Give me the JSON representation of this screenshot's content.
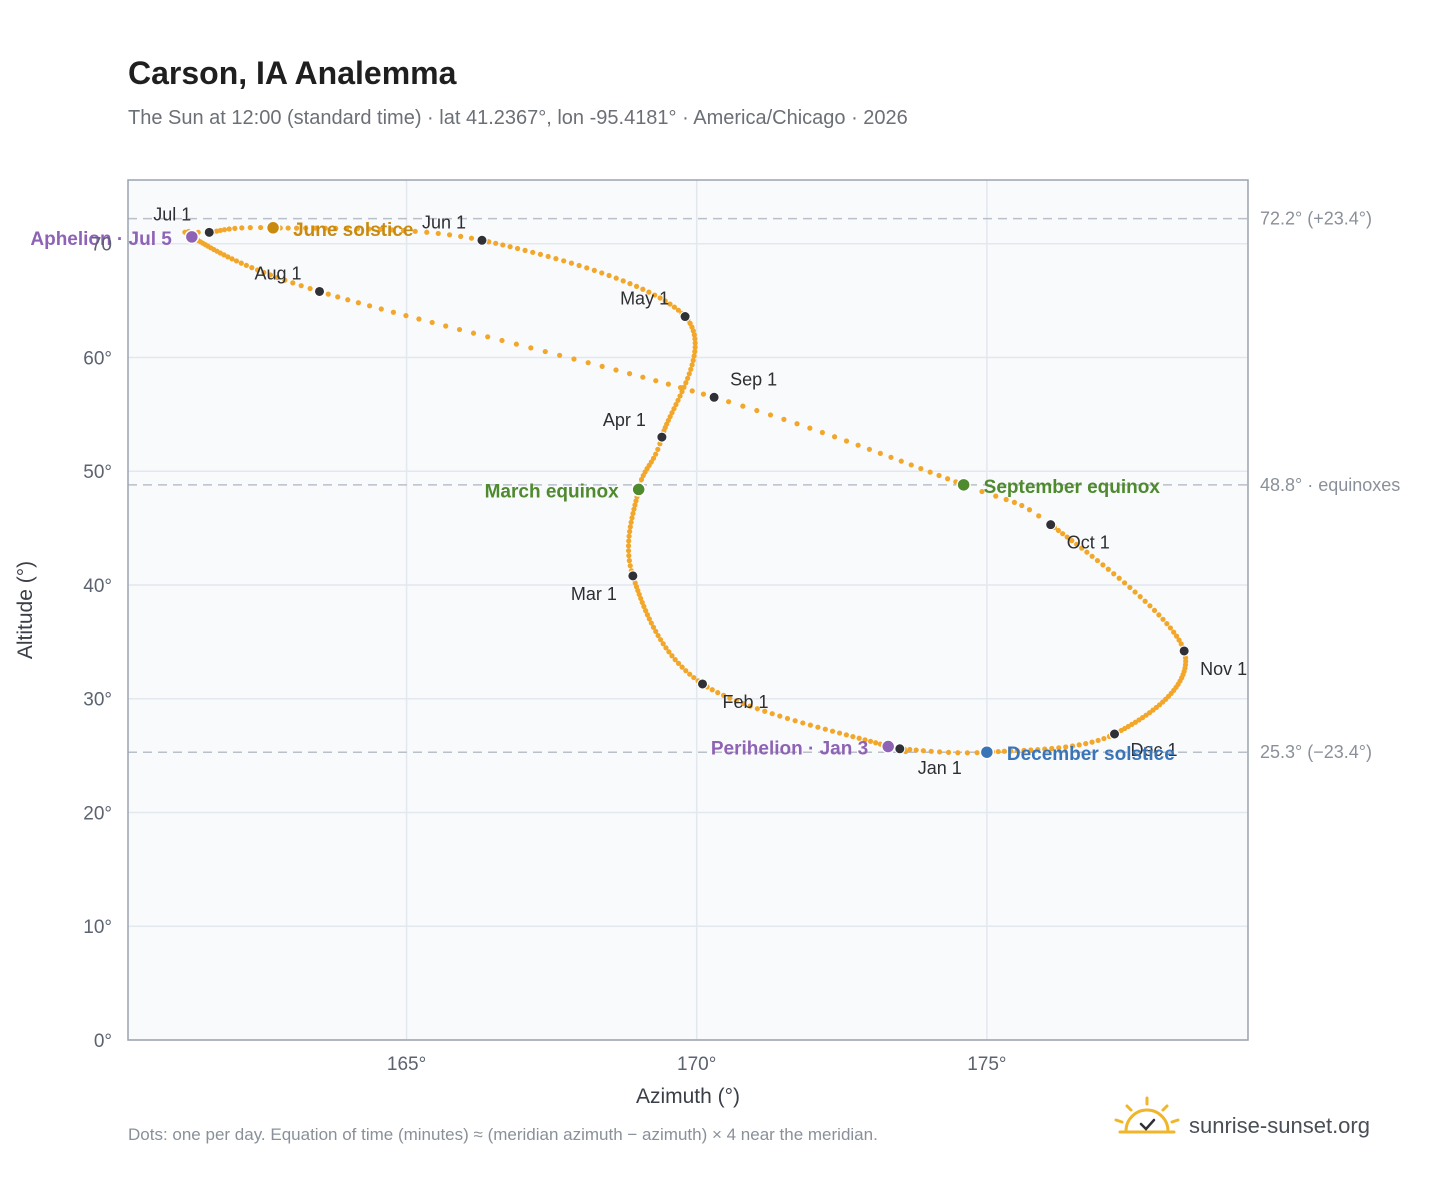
{
  "chart_data": {
    "type": "scatter",
    "title": "Carson, IA Analemma",
    "subtitle": "The Sun at 12:00 (standard time) · lat 41.2367°, lon -95.4181° · America/Chicago · 2026",
    "xlabel": "Azimuth (°)",
    "ylabel": "Altitude (°)",
    "xlim": [
      160.2,
      179.5
    ],
    "ylim": [
      0,
      75.6
    ],
    "x_ticks": [
      {
        "value": 165,
        "label": "165°"
      },
      {
        "value": 170,
        "label": "170°"
      },
      {
        "value": 175,
        "label": "175°"
      }
    ],
    "y_ticks": [
      {
        "value": 0,
        "label": "0°"
      },
      {
        "value": 10,
        "label": "10°"
      },
      {
        "value": 20,
        "label": "20°"
      },
      {
        "value": 30,
        "label": "30°"
      },
      {
        "value": 40,
        "label": "40°"
      },
      {
        "value": 50,
        "label": "50°"
      },
      {
        "value": 60,
        "label": "60°"
      },
      {
        "value": 70,
        "label": "70"
      }
    ],
    "grid": true,
    "reference_lines": [
      {
        "y": 72.2,
        "label": "72.2° (+23.4°)"
      },
      {
        "y": 48.8,
        "label": "48.8° · equinoxes"
      },
      {
        "y": 25.3,
        "label": "25.3° (−23.4°)"
      }
    ],
    "curve_color": "#f2a72a",
    "marker_color": "#2f3137",
    "month_markers": [
      {
        "label": "Jan 1",
        "x": 173.5,
        "y": 25.6
      },
      {
        "label": "Feb 1",
        "x": 170.1,
        "y": 31.3
      },
      {
        "label": "Mar 1",
        "x": 168.9,
        "y": 40.8
      },
      {
        "label": "Apr 1",
        "x": 169.4,
        "y": 53.0
      },
      {
        "label": "May 1",
        "x": 169.8,
        "y": 63.6
      },
      {
        "label": "Jun 1",
        "x": 166.3,
        "y": 70.3
      },
      {
        "label": "Jul 1",
        "x": 161.6,
        "y": 71.0
      },
      {
        "label": "Aug 1",
        "x": 163.5,
        "y": 65.8
      },
      {
        "label": "Sep 1",
        "x": 170.3,
        "y": 56.5
      },
      {
        "label": "Oct 1",
        "x": 176.1,
        "y": 45.3
      },
      {
        "label": "Nov 1",
        "x": 178.4,
        "y": 34.2
      },
      {
        "label": "Dec 1",
        "x": 177.2,
        "y": 26.9
      }
    ],
    "events": [
      {
        "label": "Perihelion · Jan 3",
        "x": 173.3,
        "y": 25.8,
        "color": "#8e63b5"
      },
      {
        "label": "March equinox",
        "x": 169.0,
        "y": 48.4,
        "color": "#4f8a2e"
      },
      {
        "label": "June solstice",
        "x": 162.7,
        "y": 71.4,
        "color": "#c98a10"
      },
      {
        "label": "Aphelion · Jul 5",
        "x": 161.3,
        "y": 70.6,
        "color": "#8e63b5"
      },
      {
        "label": "September equinox",
        "x": 174.6,
        "y": 48.8,
        "color": "#4f8a2e"
      },
      {
        "label": "December solstice",
        "x": 175.0,
        "y": 25.3,
        "color": "#3a74b8"
      }
    ]
  },
  "footnote": "Dots: one per day. Equation of time (minutes) ≈ (meridian azimuth − azimuth) × 4 near the meridian.",
  "brand": {
    "name": "sunrise-sunset.org",
    "logo_icon": "sun-check-icon",
    "logo_color": "#f0b62b"
  }
}
